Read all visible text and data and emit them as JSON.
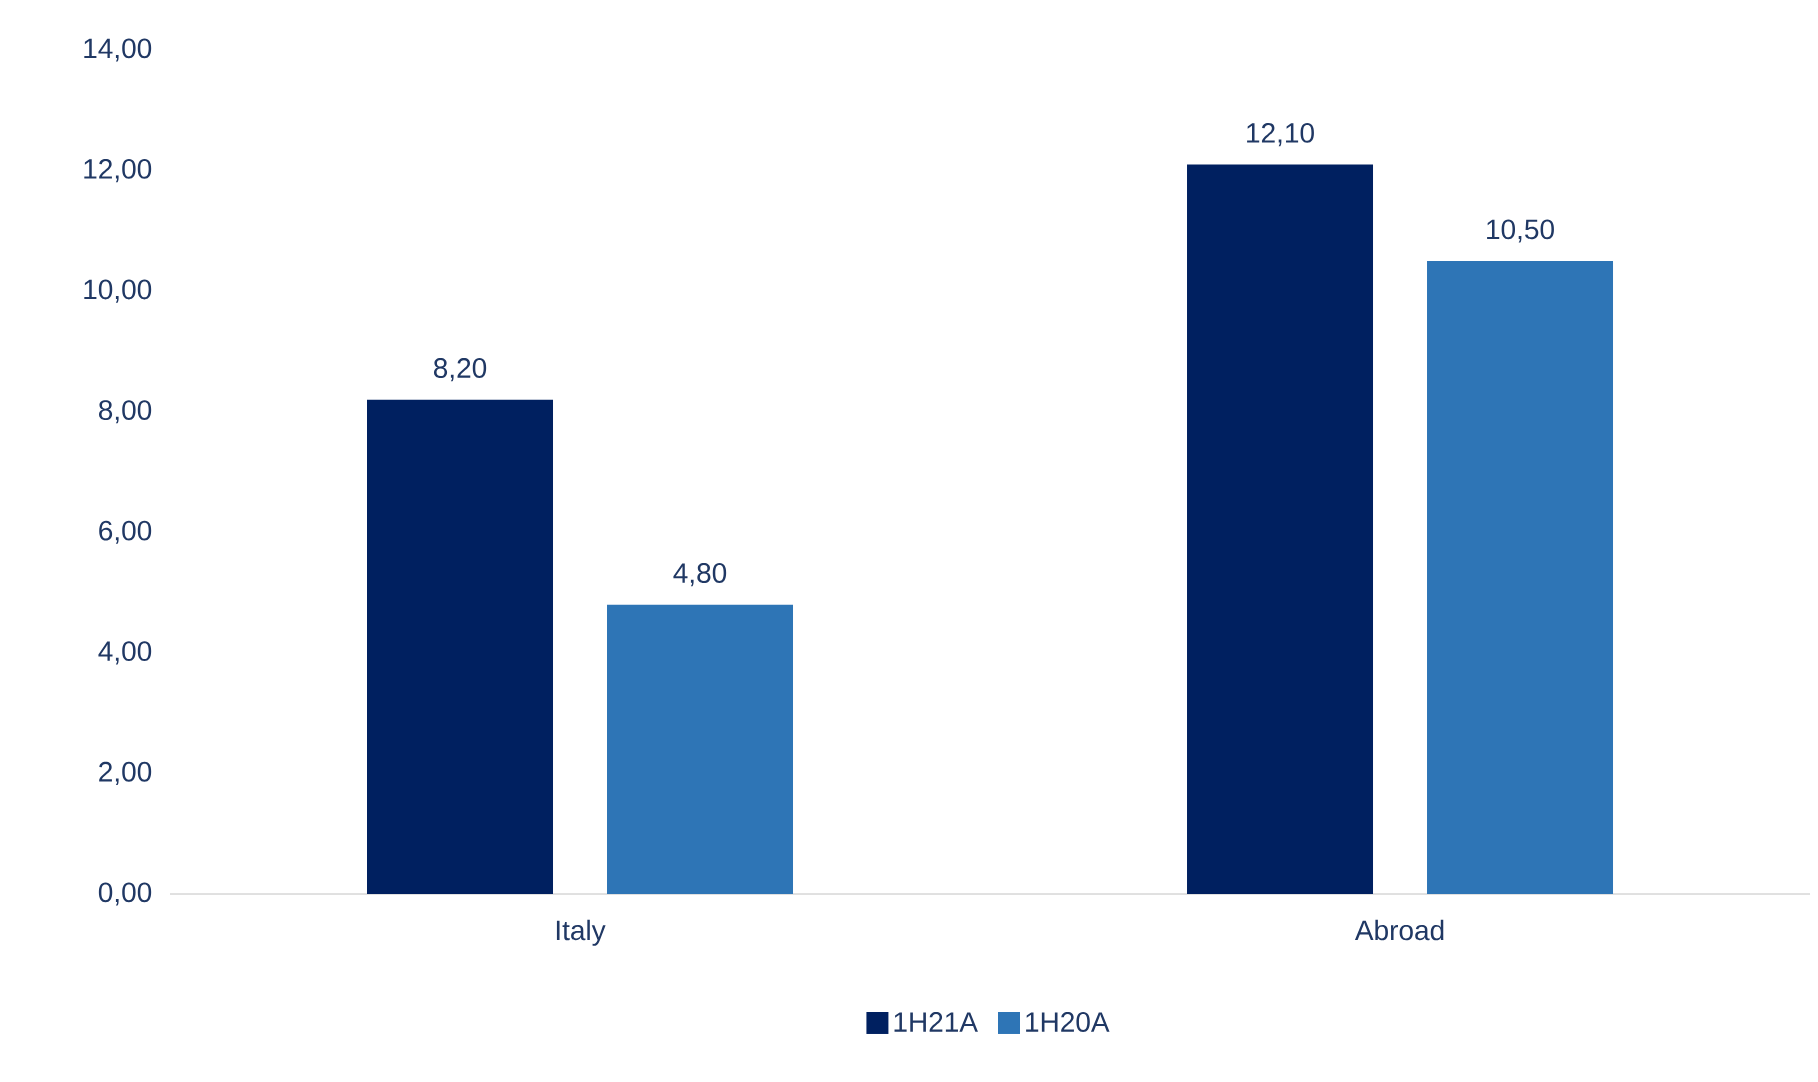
{
  "chart_data": {
    "type": "bar",
    "categories": [
      "Italy",
      "Abroad"
    ],
    "series": [
      {
        "name": "1H21A",
        "color": "#002060",
        "values": [
          8.2,
          12.1
        ],
        "value_labels": [
          "8,20",
          "12,10"
        ]
      },
      {
        "name": "1H20A",
        "color": "#2e75b6",
        "values": [
          4.8,
          10.5
        ],
        "value_labels": [
          "4,80",
          "10,50"
        ]
      }
    ],
    "ylim": [
      0,
      14
    ],
    "yticks": [
      {
        "value": 0,
        "label": "0,00"
      },
      {
        "value": 2,
        "label": "2,00"
      },
      {
        "value": 4,
        "label": "4,00"
      },
      {
        "value": 6,
        "label": "6,00"
      },
      {
        "value": 8,
        "label": "8,00"
      },
      {
        "value": 10,
        "label": "10,00"
      },
      {
        "value": 12,
        "label": "12,00"
      },
      {
        "value": 14,
        "label": "14,00"
      }
    ],
    "grid": false,
    "legend": "bottom"
  }
}
